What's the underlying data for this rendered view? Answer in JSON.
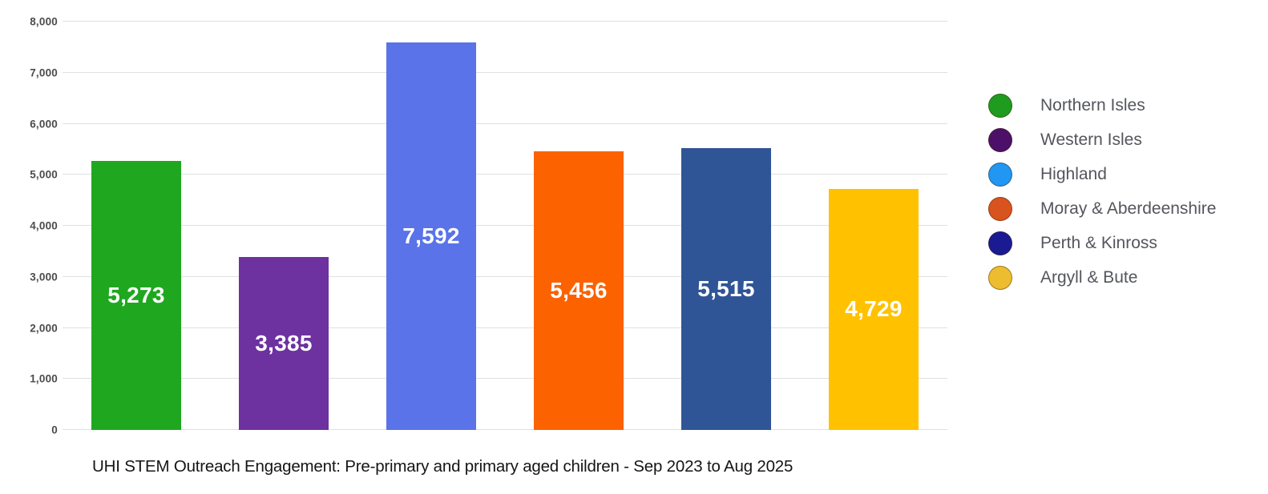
{
  "chart_data": {
    "type": "bar",
    "title": "UHI STEM Outreach Engagement: Pre-primary and primary aged children - Sep 2023 to Aug 2025",
    "xlabel": "",
    "ylabel": "",
    "ylim": [
      0,
      8000
    ],
    "ytick_interval": 1000,
    "ytick_labels": [
      "0",
      "1,000",
      "2,000",
      "3,000",
      "4,000",
      "5,000",
      "6,000",
      "7,000",
      "8,000"
    ],
    "grid": true,
    "legend_position": "right",
    "categories": [
      "Northern Isles",
      "Western Isles",
      "Highland",
      "Moray & Aberdeenshire",
      "Perth & Kinross",
      "Argyll & Bute"
    ],
    "values": [
      5273,
      3385,
      7592,
      5456,
      5515,
      4729
    ],
    "value_labels": [
      "5,273",
      "3,385",
      "7,592",
      "5,456",
      "5,515",
      "4,729"
    ],
    "bar_colors": [
      "#1fa81f",
      "#6d31a0",
      "#5a73e8",
      "#fc6200",
      "#2f5596",
      "#ffc100"
    ],
    "legend_colors": [
      "#1f9b1f",
      "#4d1068",
      "#2196f3",
      "#d9531e",
      "#1a1a92",
      "#eebc2f"
    ],
    "gridline_color": "#e0e0e0",
    "value_label_color": "#ffffff"
  }
}
